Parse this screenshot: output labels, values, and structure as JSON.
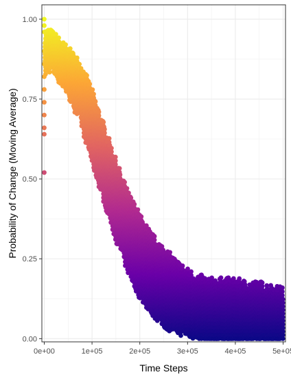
{
  "chart_data": {
    "type": "scatter",
    "title": "",
    "xlabel": "Time Steps",
    "ylabel": "Probability of Change (Moving Average)",
    "xlim": [
      -5000,
      505000
    ],
    "ylim": [
      -0.01,
      1.045
    ],
    "x_ticks": [
      0,
      100000,
      200000,
      300000,
      400000,
      500000
    ],
    "x_tick_labels": [
      "0e+00",
      "1e+05",
      "2e+05",
      "3e+05",
      "4e+05",
      "5e+05"
    ],
    "y_ticks": [
      0.0,
      0.25,
      0.5,
      0.75,
      1.0
    ],
    "y_tick_labels": [
      "0.00",
      "0.25",
      "0.50",
      "0.75",
      "1.00"
    ],
    "grid": true,
    "legend": "none",
    "color_scale": "plasma (mapped to y value)",
    "colors": [
      "#0d0887",
      "#6a00a8",
      "#b12a90",
      "#e16462",
      "#fca636",
      "#f0f921"
    ],
    "series": [
      {
        "description_points": [
          {
            "x": 0,
            "y": 1.0
          },
          {
            "x": 0,
            "y": 0.98
          },
          {
            "x": 0,
            "y": 0.96
          },
          {
            "x": 0,
            "y": 0.9
          },
          {
            "x": 0,
            "y": 0.86
          },
          {
            "x": 0,
            "y": 0.82
          },
          {
            "x": 0,
            "y": 0.78
          },
          {
            "x": 0,
            "y": 0.74
          },
          {
            "x": 0,
            "y": 0.7
          },
          {
            "x": 0,
            "y": 0.66
          },
          {
            "x": 0,
            "y": 0.64
          },
          {
            "x": 0,
            "y": 0.52
          }
        ],
        "envelope_x": [
          0,
          10000,
          25000,
          50000,
          75000,
          100000,
          125000,
          150000,
          175000,
          200000,
          225000,
          250000,
          275000,
          300000,
          325000,
          350000,
          375000,
          400000,
          425000,
          450000,
          475000,
          500000
        ],
        "envelope_upper": [
          0.94,
          0.94,
          0.92,
          0.88,
          0.84,
          0.75,
          0.64,
          0.53,
          0.43,
          0.36,
          0.3,
          0.26,
          0.22,
          0.19,
          0.17,
          0.16,
          0.16,
          0.16,
          0.15,
          0.15,
          0.14,
          0.13
        ],
        "envelope_lower": [
          0.84,
          0.86,
          0.84,
          0.78,
          0.7,
          0.57,
          0.45,
          0.33,
          0.23,
          0.15,
          0.1,
          0.06,
          0.04,
          0.03,
          0.02,
          0.0,
          0.0,
          0.0,
          0.0,
          0.0,
          0.0,
          0.0
        ]
      }
    ]
  }
}
